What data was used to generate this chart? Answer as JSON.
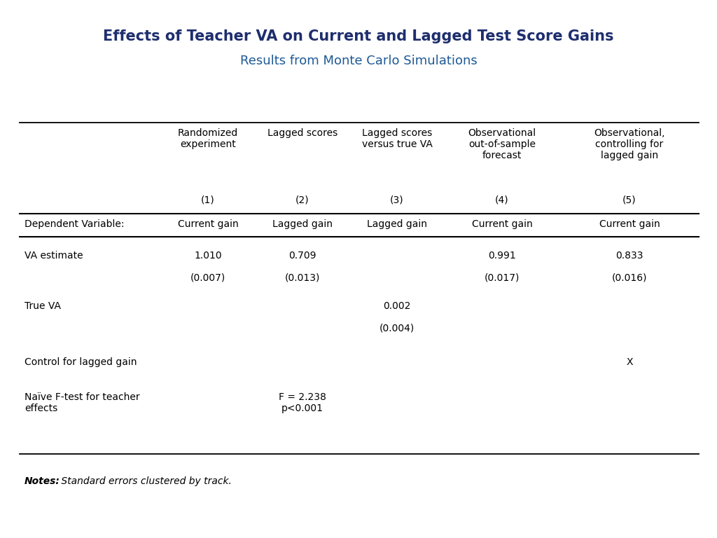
{
  "title": "Effects of Teacher VA on Current and Lagged Test Score Gains",
  "subtitle": "Results from Monte Carlo Simulations",
  "title_color": "#1e2e6e",
  "subtitle_color": "#1e5a96",
  "background_color": "#ffffff",
  "col_headers": [
    "Randomized\nexperiment",
    "Lagged scores",
    "Lagged scores\nversus true VA",
    "Observational\nout-of-sample\nforecast",
    "Observational,\ncontrolling for\nlagged gain"
  ],
  "col_numbers": [
    "(1)",
    "(2)",
    "(3)",
    "(4)",
    "(5)"
  ],
  "dep_var_row": [
    "Current gain",
    "Lagged gain",
    "Lagged gain",
    "Current gain",
    "Current gain"
  ],
  "row_labels": [
    "VA estimate",
    "True VA",
    "Control for lagged gain",
    "Naïve F-test for teacher\neffects"
  ],
  "row_values": [
    [
      "1.010",
      "0.709",
      "",
      "0.991",
      "0.833"
    ],
    [
      "",
      "",
      "0.002",
      "",
      ""
    ],
    [
      "",
      "",
      "",
      "",
      "X"
    ],
    [
      "",
      "F = 2.238\np<0.001",
      "",
      "",
      ""
    ]
  ],
  "row_se": [
    [
      "(0.007)",
      "(0.013)",
      "",
      "(0.017)",
      "(0.016)"
    ],
    [
      "",
      "",
      "(0.004)",
      "",
      ""
    ],
    [
      "",
      "",
      "",
      "",
      ""
    ],
    [
      "",
      "",
      "",
      "",
      ""
    ]
  ],
  "notes_bold": "Notes:",
  "notes_normal": " Standard errors clustered by track.",
  "title_fontsize": 15,
  "subtitle_fontsize": 13,
  "table_fontsize": 10,
  "notes_fontsize": 10
}
